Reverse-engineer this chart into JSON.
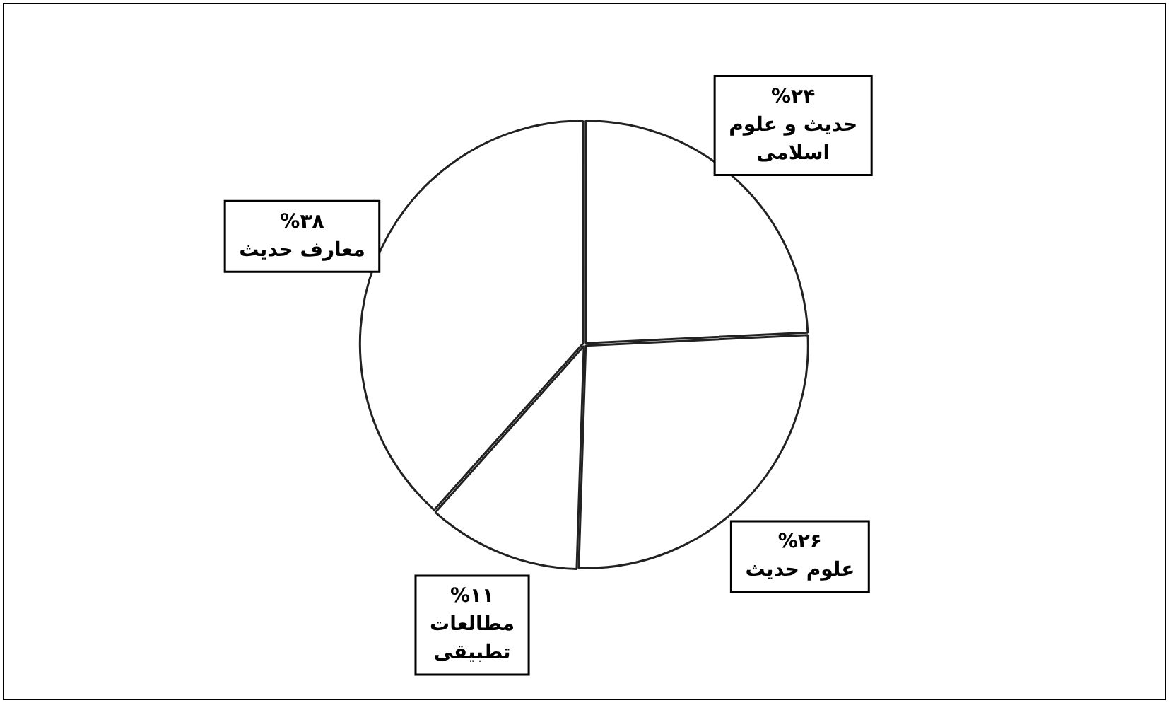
{
  "chart_data": {
    "type": "pie",
    "categories": [
      "حدیث و علوم اسلامی",
      "علوم حدیث",
      "مطالعات تطبیقی",
      "معارف حدیث"
    ],
    "values": [
      24,
      26,
      11,
      38
    ],
    "colors": [
      "#ffffff",
      "#ffffff",
      "#ffffff",
      "#ffffff"
    ],
    "value_labels": [
      "%۲۴",
      "%۲۶",
      "%۱۱",
      "%۳۸"
    ]
  }
}
